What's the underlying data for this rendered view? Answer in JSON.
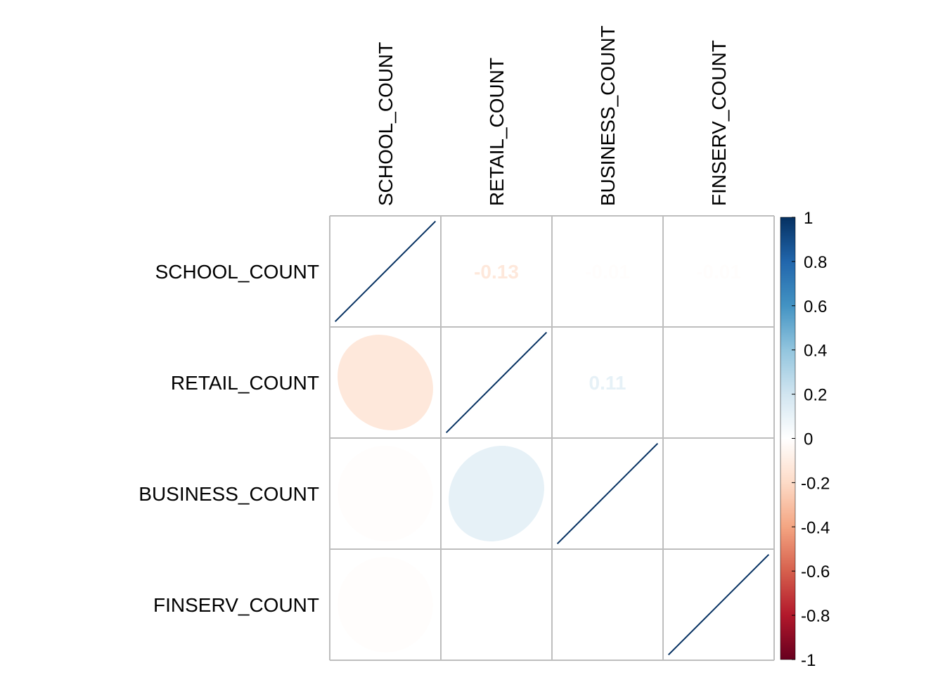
{
  "chart_data": {
    "type": "heatmap",
    "subtype": "correlation-matrix",
    "title": "",
    "variables": [
      "SCHOOL_COUNT",
      "RETAIL_COUNT",
      "BUSINESS_COUNT",
      "FINSERV_COUNT"
    ],
    "matrix": [
      [
        1.0,
        -0.13,
        -0.01,
        -0.01
      ],
      [
        -0.13,
        1.0,
        0.11,
        0.0
      ],
      [
        -0.01,
        0.11,
        1.0,
        0.0
      ],
      [
        -0.01,
        0.0,
        0.0,
        1.0
      ]
    ],
    "lower_method": "ellipse",
    "upper_method": "number",
    "upper_labels": [
      [
        "",
        "-0.13",
        "-0.01",
        "-0.01"
      ],
      [
        "",
        "",
        "0.11",
        "0"
      ],
      [
        "",
        "",
        "",
        "0"
      ],
      [
        "",
        "",
        "",
        ""
      ]
    ],
    "colorbar": {
      "range": [
        -1,
        1
      ],
      "ticks": [
        "-1",
        "-0.8",
        "-0.6",
        "-0.4",
        "-0.2",
        "0",
        "0.2",
        "0.4",
        "0.6",
        "0.8",
        "1"
      ],
      "colors": [
        "#67001F",
        "#B2182B",
        "#D6604D",
        "#F4A582",
        "#FDDBC7",
        "#FFFFFF",
        "#D1E5F0",
        "#92C5DE",
        "#4393C3",
        "#2166AC",
        "#053061"
      ]
    },
    "grid": true,
    "legend": "right"
  }
}
